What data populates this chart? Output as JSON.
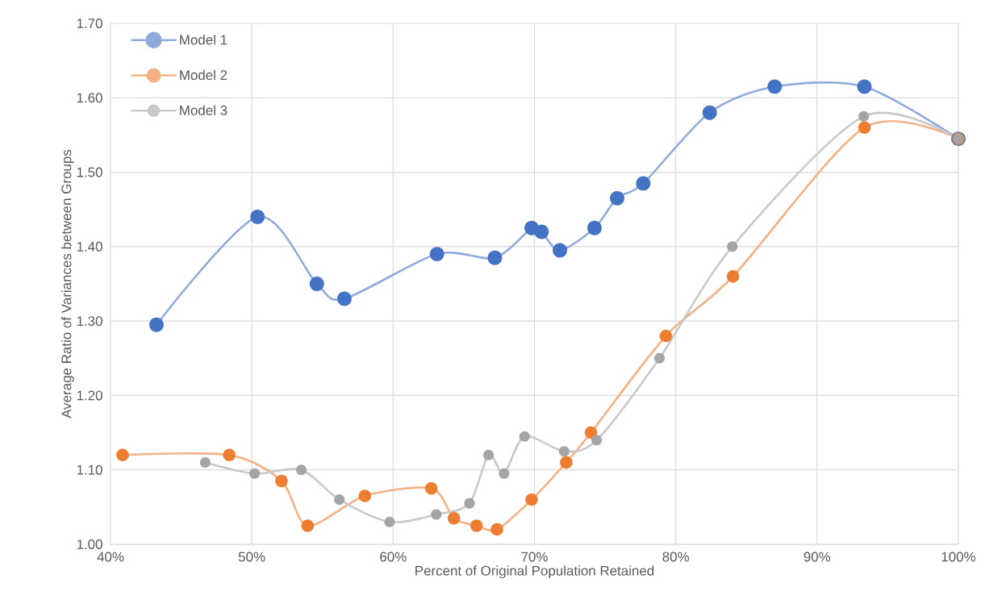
{
  "chart_data": {
    "type": "line",
    "xlabel": "Percent of Original Population Retained",
    "ylabel": "Average Ratio of Variances between Groups",
    "xlim": [
      40,
      100
    ],
    "ylim": [
      1.0,
      1.7
    ],
    "xticks": [
      {
        "value": 40,
        "label": "40%"
      },
      {
        "value": 50,
        "label": "50%"
      },
      {
        "value": 60,
        "label": "60%"
      },
      {
        "value": 70,
        "label": "70%"
      },
      {
        "value": 80,
        "label": "80%"
      },
      {
        "value": 90,
        "label": "90%"
      },
      {
        "value": 100,
        "label": "100%"
      }
    ],
    "yticks": [
      {
        "value": 1.0,
        "label": "1.00"
      },
      {
        "value": 1.1,
        "label": "1.10"
      },
      {
        "value": 1.2,
        "label": "1.20"
      },
      {
        "value": 1.3,
        "label": "1.30"
      },
      {
        "value": 1.4,
        "label": "1.40"
      },
      {
        "value": 1.5,
        "label": "1.50"
      },
      {
        "value": 1.6,
        "label": "1.60"
      },
      {
        "value": 1.7,
        "label": "1.70"
      }
    ],
    "grid": true,
    "legend": "top left",
    "marker": "circle",
    "series": [
      {
        "name": "Model 1",
        "color": "#4472c4",
        "x": [
          43.25,
          50.4,
          54.6,
          56.55,
          63.1,
          67.2,
          69.8,
          70.5,
          71.8,
          74.25,
          75.85,
          77.7,
          82.4,
          87.0,
          93.35,
          100
        ],
        "values": [
          1.295,
          1.44,
          1.35,
          1.33,
          1.39,
          1.385,
          1.425,
          1.42,
          1.395,
          1.425,
          1.465,
          1.485,
          1.58,
          1.615,
          1.615,
          1.545
        ]
      },
      {
        "name": "Model 2",
        "color": "#ed7d31",
        "x": [
          40.85,
          48.4,
          52.1,
          53.95,
          58.0,
          62.7,
          64.3,
          65.9,
          67.35,
          69.8,
          72.25,
          74.0,
          79.3,
          84.05,
          93.35,
          100
        ],
        "values": [
          1.12,
          1.12,
          1.085,
          1.025,
          1.065,
          1.075,
          1.035,
          1.025,
          1.02,
          1.06,
          1.11,
          1.15,
          1.28,
          1.36,
          1.56,
          1.545
        ]
      },
      {
        "name": "Model 3",
        "color": "#a5a5a5",
        "x": [
          46.7,
          50.2,
          53.5,
          56.2,
          59.75,
          63.05,
          65.4,
          66.75,
          67.85,
          69.3,
          72.1,
          74.4,
          78.85,
          84.0,
          93.3,
          100
        ],
        "values": [
          1.11,
          1.095,
          1.1,
          1.06,
          1.03,
          1.04,
          1.055,
          1.12,
          1.095,
          1.145,
          1.125,
          1.14,
          1.25,
          1.4,
          1.575,
          1.545
        ]
      }
    ]
  }
}
